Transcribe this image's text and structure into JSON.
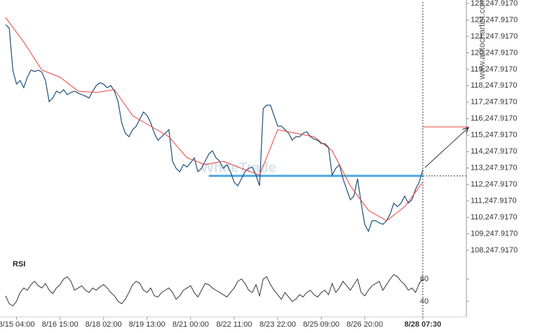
{
  "chart_data": [
    {
      "type": "line",
      "source": "www.autochartist.com",
      "watermark": "WhiteTrade",
      "xlim": [
        0,
        127
      ],
      "xticks": [
        {
          "value": 3,
          "label": "8/15 04:00"
        },
        {
          "value": 15,
          "label": "8/16 15:00"
        },
        {
          "value": 27,
          "label": "8/18 02:00"
        },
        {
          "value": 39,
          "label": "8/19 13:00"
        },
        {
          "value": 51,
          "label": "8/21 00:00"
        },
        {
          "value": 63,
          "label": "8/22 11:00"
        },
        {
          "value": 75,
          "label": "8/23 22:00"
        },
        {
          "value": 87,
          "label": "8/25 09:00"
        },
        {
          "value": 99,
          "label": "8/26 20:00"
        },
        {
          "value": 115,
          "label": "8/28 07:30"
        }
      ],
      "ylim": [
        108247.917,
        123247.917
      ],
      "yticks": [
        {
          "value": 108247.917,
          "label": "108,247.9170"
        },
        {
          "value": 109247.917,
          "label": "109,247.9170"
        },
        {
          "value": 110247.917,
          "label": "110,247.9170"
        },
        {
          "value": 111247.917,
          "label": "111,247.9170"
        },
        {
          "value": 112247.917,
          "label": "112,247.9170"
        },
        {
          "value": 113247.917,
          "label": "113,247.9170"
        },
        {
          "value": 114247.917,
          "label": "114,247.9170"
        },
        {
          "value": 115247.917,
          "label": "115,247.9170"
        },
        {
          "value": 116247.917,
          "label": "116,247.9170"
        },
        {
          "value": 117247.917,
          "label": "117,247.9170"
        },
        {
          "value": 118247.917,
          "label": "118,247.9170"
        },
        {
          "value": 119247.917,
          "label": "119,247.9170"
        },
        {
          "value": 120247.917,
          "label": "120,247.9170"
        },
        {
          "value": 121247.917,
          "label": "121,247.9170"
        },
        {
          "value": 122247.917,
          "label": "122,247.9170"
        },
        {
          "value": 123247.917,
          "label": "123,247.9170"
        }
      ],
      "series": [
        {
          "color": "#1d4f7a",
          "width": 1.2,
          "x": [
            0,
            1,
            2,
            3,
            4,
            5,
            6,
            7,
            8,
            9,
            10,
            11,
            12,
            13,
            14,
            15,
            16,
            17,
            18,
            19,
            20,
            21,
            22,
            23,
            24,
            25,
            26,
            27,
            28,
            29,
            30,
            31,
            32,
            33,
            34,
            35,
            36,
            37,
            38,
            39,
            40,
            41,
            42,
            43,
            44,
            45,
            46,
            47,
            48,
            49,
            50,
            51,
            52,
            53,
            54,
            55,
            56,
            57,
            58,
            59,
            60,
            61,
            62,
            63,
            64,
            65,
            66,
            67,
            68,
            69,
            70,
            71,
            72,
            73,
            74,
            75,
            76,
            77,
            78,
            79,
            80,
            81,
            82,
            83,
            84,
            85,
            86,
            87,
            88,
            89,
            90,
            91,
            92,
            93,
            94,
            95,
            96,
            97,
            98,
            99,
            100,
            101,
            102,
            103,
            104,
            105,
            106,
            107,
            108,
            109,
            110,
            111,
            112,
            113,
            114,
            115
          ],
          "values": [
            121970,
            121750,
            119200,
            118350,
            118560,
            118130,
            118770,
            119200,
            119110,
            119200,
            119070,
            118560,
            117280,
            117500,
            117920,
            117800,
            118010,
            117710,
            117840,
            117920,
            117800,
            117710,
            117620,
            117500,
            117920,
            118260,
            118430,
            118350,
            118130,
            118260,
            117920,
            117280,
            116000,
            115360,
            115150,
            115580,
            115790,
            116220,
            116650,
            116430,
            116000,
            115360,
            114940,
            115150,
            115360,
            115580,
            113660,
            113230,
            113020,
            113450,
            113310,
            113560,
            113870,
            113020,
            113230,
            113660,
            114090,
            114300,
            113870,
            113660,
            113230,
            113450,
            113020,
            112380,
            112170,
            112600,
            113020,
            113230,
            113310,
            112810,
            112170,
            116860,
            117070,
            117070,
            116430,
            115790,
            115790,
            115580,
            115360,
            114940,
            115150,
            115150,
            115360,
            115450,
            115150,
            115020,
            114940,
            114730,
            114730,
            114510,
            112810,
            113230,
            113450,
            112600,
            111960,
            111320,
            111540,
            112600,
            111110,
            109830,
            109400,
            110040,
            110040,
            109910,
            109830,
            110040,
            110470,
            111110,
            110900,
            111110,
            111540,
            111110,
            111320,
            111960,
            112380,
            113150
          ]
        },
        {
          "color": "#e8413a",
          "width": 1,
          "x": [
            0,
            5,
            10,
            15,
            20,
            25,
            30,
            35,
            40,
            45,
            50,
            55,
            60,
            65,
            70,
            75,
            80,
            85,
            90,
            95,
            100,
            105,
            110,
            115
          ],
          "values": [
            122400,
            120900,
            119200,
            118770,
            117920,
            117840,
            118010,
            116430,
            115790,
            115150,
            113870,
            113450,
            113660,
            113230,
            112810,
            115580,
            115360,
            115150,
            114300,
            112170,
            110680,
            110040,
            110900,
            112380
          ]
        }
      ],
      "support": {
        "value": 112770,
        "x_start": 56,
        "color": "#4aa8e0"
      },
      "target": {
        "value": 115750,
        "color": "#e8413a"
      }
    },
    {
      "type": "line",
      "title": "RSI",
      "ylim": [
        28,
        68
      ],
      "yticks": [
        40,
        60
      ],
      "series": [
        {
          "color": "#333333",
          "width": 1,
          "x": [
            0,
            1,
            2,
            3,
            4,
            5,
            6,
            7,
            8,
            9,
            10,
            11,
            12,
            13,
            14,
            15,
            16,
            17,
            18,
            19,
            20,
            21,
            22,
            23,
            24,
            25,
            26,
            27,
            28,
            29,
            30,
            31,
            32,
            33,
            34,
            35,
            36,
            37,
            38,
            39,
            40,
            41,
            42,
            43,
            44,
            45,
            46,
            47,
            48,
            49,
            50,
            51,
            52,
            53,
            54,
            55,
            56,
            57,
            58,
            59,
            60,
            61,
            62,
            63,
            64,
            65,
            66,
            67,
            68,
            69,
            70,
            71,
            72,
            73,
            74,
            75,
            76,
            77,
            78,
            79,
            80,
            81,
            82,
            83,
            84,
            85,
            86,
            87,
            88,
            89,
            90,
            91,
            92,
            93,
            94,
            95,
            96,
            97,
            98,
            99,
            100,
            101,
            102,
            103,
            104,
            105,
            106,
            107,
            108,
            109,
            110,
            111,
            112,
            113,
            114,
            115
          ],
          "values": [
            45,
            38,
            36,
            40,
            48,
            52,
            50,
            55,
            58,
            54,
            52,
            56,
            50,
            47,
            52,
            55,
            60,
            62,
            58,
            50,
            52,
            54,
            50,
            48,
            52,
            50,
            53,
            55,
            52,
            48,
            45,
            40,
            38,
            42,
            48,
            55,
            58,
            56,
            50,
            48,
            52,
            45,
            44,
            48,
            50,
            52,
            48,
            42,
            45,
            50,
            52,
            54,
            48,
            44,
            50,
            56,
            55,
            52,
            50,
            48,
            46,
            44,
            48,
            52,
            58,
            60,
            56,
            50,
            48,
            55,
            45,
            60,
            62,
            55,
            50,
            46,
            42,
            48,
            44,
            40,
            42,
            46,
            44,
            48,
            50,
            46,
            44,
            48,
            50,
            46,
            56,
            48,
            52,
            58,
            54,
            50,
            55,
            60,
            48,
            45,
            50,
            54,
            56,
            58,
            50,
            55,
            60,
            64,
            62,
            58,
            55,
            50,
            52,
            48,
            56,
            60
          ]
        }
      ]
    }
  ]
}
